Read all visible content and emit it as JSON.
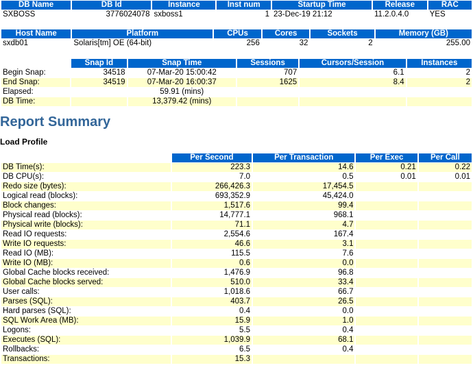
{
  "db_table": {
    "headers": [
      "DB Name",
      "DB Id",
      "Instance",
      "Inst num",
      "Startup Time",
      "Release",
      "RAC"
    ],
    "row": [
      "SXBOSS",
      "3776024078",
      "sxboss1",
      "1",
      "23-Dec-19 21:12",
      "11.2.0.4.0",
      "YES"
    ]
  },
  "host_table": {
    "headers": [
      "Host Name",
      "Platform",
      "CPUs",
      "Cores",
      "Sockets",
      "Memory (GB)"
    ],
    "row": [
      "sxdb01",
      "Solaris[tm] OE (64-bit)",
      "256",
      "32",
      "2",
      "255.00"
    ]
  },
  "snap_table": {
    "headers": [
      "Snap Id",
      "Snap Time",
      "Sessions",
      "Cursors/Session",
      "Instances"
    ],
    "begin": [
      "Begin Snap:",
      "34518",
      "07-Mar-20 15:00:42",
      "707",
      "6.1",
      "2"
    ],
    "end": [
      "End Snap:",
      "34519",
      "07-Mar-20 16:00:37",
      "1625",
      "8.4",
      "2"
    ],
    "elapsed": [
      "Elapsed:",
      "59.91 (mins)"
    ],
    "dbtime": [
      "DB Time:",
      "13,379.42 (mins)"
    ]
  },
  "report_summary_title": "Report Summary",
  "load_profile_title": "Load Profile",
  "load_profile": {
    "headers": [
      "Per Second",
      "Per Transaction",
      "Per Exec",
      "Per Call"
    ],
    "rows": [
      {
        "label": "DB Time(s):",
        "ps": "223.3",
        "pt": "14.6",
        "pe": "0.21",
        "pc": "0.22"
      },
      {
        "label": "DB CPU(s):",
        "ps": "7.0",
        "pt": "0.5",
        "pe": "0.01",
        "pc": "0.01"
      },
      {
        "label": "Redo size (bytes):",
        "ps": "266,426.3",
        "pt": "17,454.5",
        "pe": "",
        "pc": ""
      },
      {
        "label": "Logical read (blocks):",
        "ps": "693,352.9",
        "pt": "45,424.0",
        "pe": "",
        "pc": ""
      },
      {
        "label": "Block changes:",
        "ps": "1,517.6",
        "pt": "99.4",
        "pe": "",
        "pc": ""
      },
      {
        "label": "Physical read (blocks):",
        "ps": "14,777.1",
        "pt": "968.1",
        "pe": "",
        "pc": ""
      },
      {
        "label": "Physical write (blocks):",
        "ps": "71.1",
        "pt": "4.7",
        "pe": "",
        "pc": ""
      },
      {
        "label": "Read IO requests:",
        "ps": "2,554.6",
        "pt": "167.4",
        "pe": "",
        "pc": ""
      },
      {
        "label": "Write IO requests:",
        "ps": "46.6",
        "pt": "3.1",
        "pe": "",
        "pc": ""
      },
      {
        "label": "Read IO (MB):",
        "ps": "115.5",
        "pt": "7.6",
        "pe": "",
        "pc": ""
      },
      {
        "label": "Write IO (MB):",
        "ps": "0.6",
        "pt": "0.0",
        "pe": "",
        "pc": ""
      },
      {
        "label": "Global Cache blocks received:",
        "ps": "1,476.9",
        "pt": "96.8",
        "pe": "",
        "pc": ""
      },
      {
        "label": "Global Cache blocks served:",
        "ps": "510.0",
        "pt": "33.4",
        "pe": "",
        "pc": ""
      },
      {
        "label": "User calls:",
        "ps": "1,018.6",
        "pt": "66.7",
        "pe": "",
        "pc": ""
      },
      {
        "label": "Parses (SQL):",
        "ps": "403.7",
        "pt": "26.5",
        "pe": "",
        "pc": ""
      },
      {
        "label": "Hard parses (SQL):",
        "ps": "0.4",
        "pt": "0.0",
        "pe": "",
        "pc": ""
      },
      {
        "label": "SQL Work Area (MB):",
        "ps": "15.9",
        "pt": "1.0",
        "pe": "",
        "pc": ""
      },
      {
        "label": "Logons:",
        "ps": "5.5",
        "pt": "0.4",
        "pe": "",
        "pc": ""
      },
      {
        "label": "Executes (SQL):",
        "ps": "1,039.9",
        "pt": "68.1",
        "pe": "",
        "pc": ""
      },
      {
        "label": "Rollbacks:",
        "ps": "6.5",
        "pt": "0.4",
        "pe": "",
        "pc": ""
      },
      {
        "label": "Transactions:",
        "ps": "15.3",
        "pt": "",
        "pe": "",
        "pc": ""
      }
    ]
  }
}
